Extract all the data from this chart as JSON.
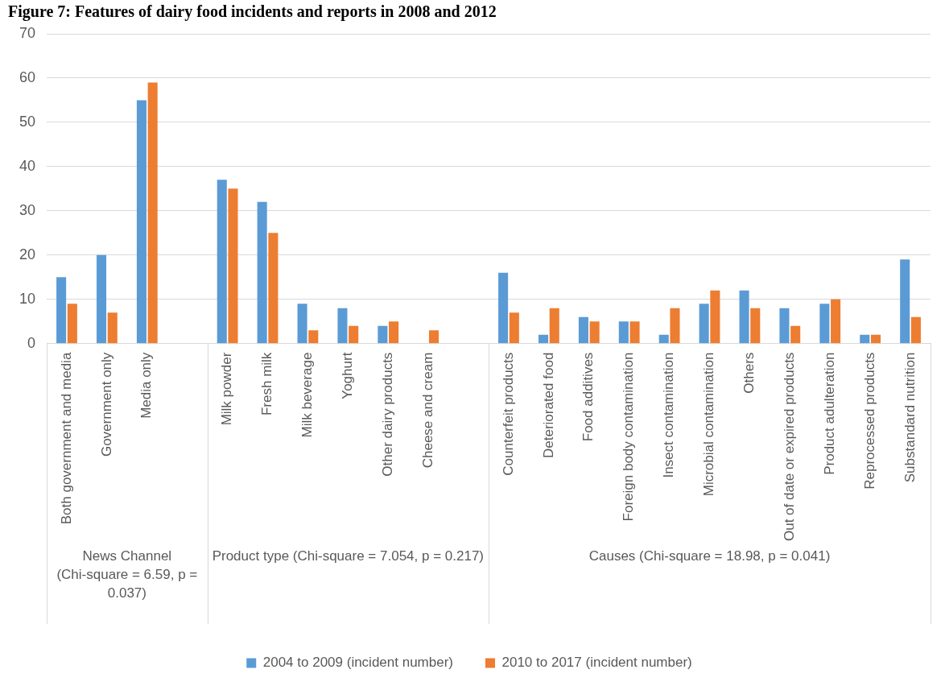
{
  "chart_data": {
    "type": "bar",
    "title": "Figure 7: Features of dairy food incidents and reports in 2008 and 2012",
    "categories": [
      "Both government and media",
      "Government only",
      "Media only",
      null,
      "Milk powder",
      "Fresh milk",
      "Milk beverage",
      "Yoghurt",
      "Other dairy products",
      "Cheese and cream",
      null,
      "Counterfeit products",
      "Deteriorated food",
      "Food additives",
      "Foreign body contamination",
      "Insect contamination",
      "Microbial contamination",
      "Others",
      "Out of date or expired products",
      "Product adulteration",
      "Reprocessed products",
      "Substandard nutrition"
    ],
    "series": [
      {
        "name": "2004 to 2009 (incident number)",
        "color": "#5b9bd5",
        "values": [
          15,
          20,
          55,
          null,
          37,
          32,
          9,
          8,
          4,
          0,
          null,
          16,
          2,
          6,
          5,
          2,
          9,
          12,
          8,
          9,
          2,
          19
        ]
      },
      {
        "name": "2010 to 2017 (incident number)",
        "color": "#ed7d31",
        "values": [
          9,
          7,
          59,
          null,
          35,
          25,
          3,
          4,
          5,
          3,
          null,
          7,
          8,
          5,
          5,
          8,
          12,
          8,
          4,
          10,
          2,
          6
        ]
      }
    ],
    "ylim": [
      0,
      70
    ],
    "yticks": [
      0,
      10,
      20,
      30,
      40,
      50,
      60,
      70
    ],
    "grid": "y",
    "legend": "bottom",
    "annotations": [
      "News Channel (Chi-square = 6.59, p = 0.037)",
      "Product type (Chi-square = 7.054, p = 0.217)",
      "Causes (Chi-square = 18.98, p = 0.041)"
    ]
  }
}
